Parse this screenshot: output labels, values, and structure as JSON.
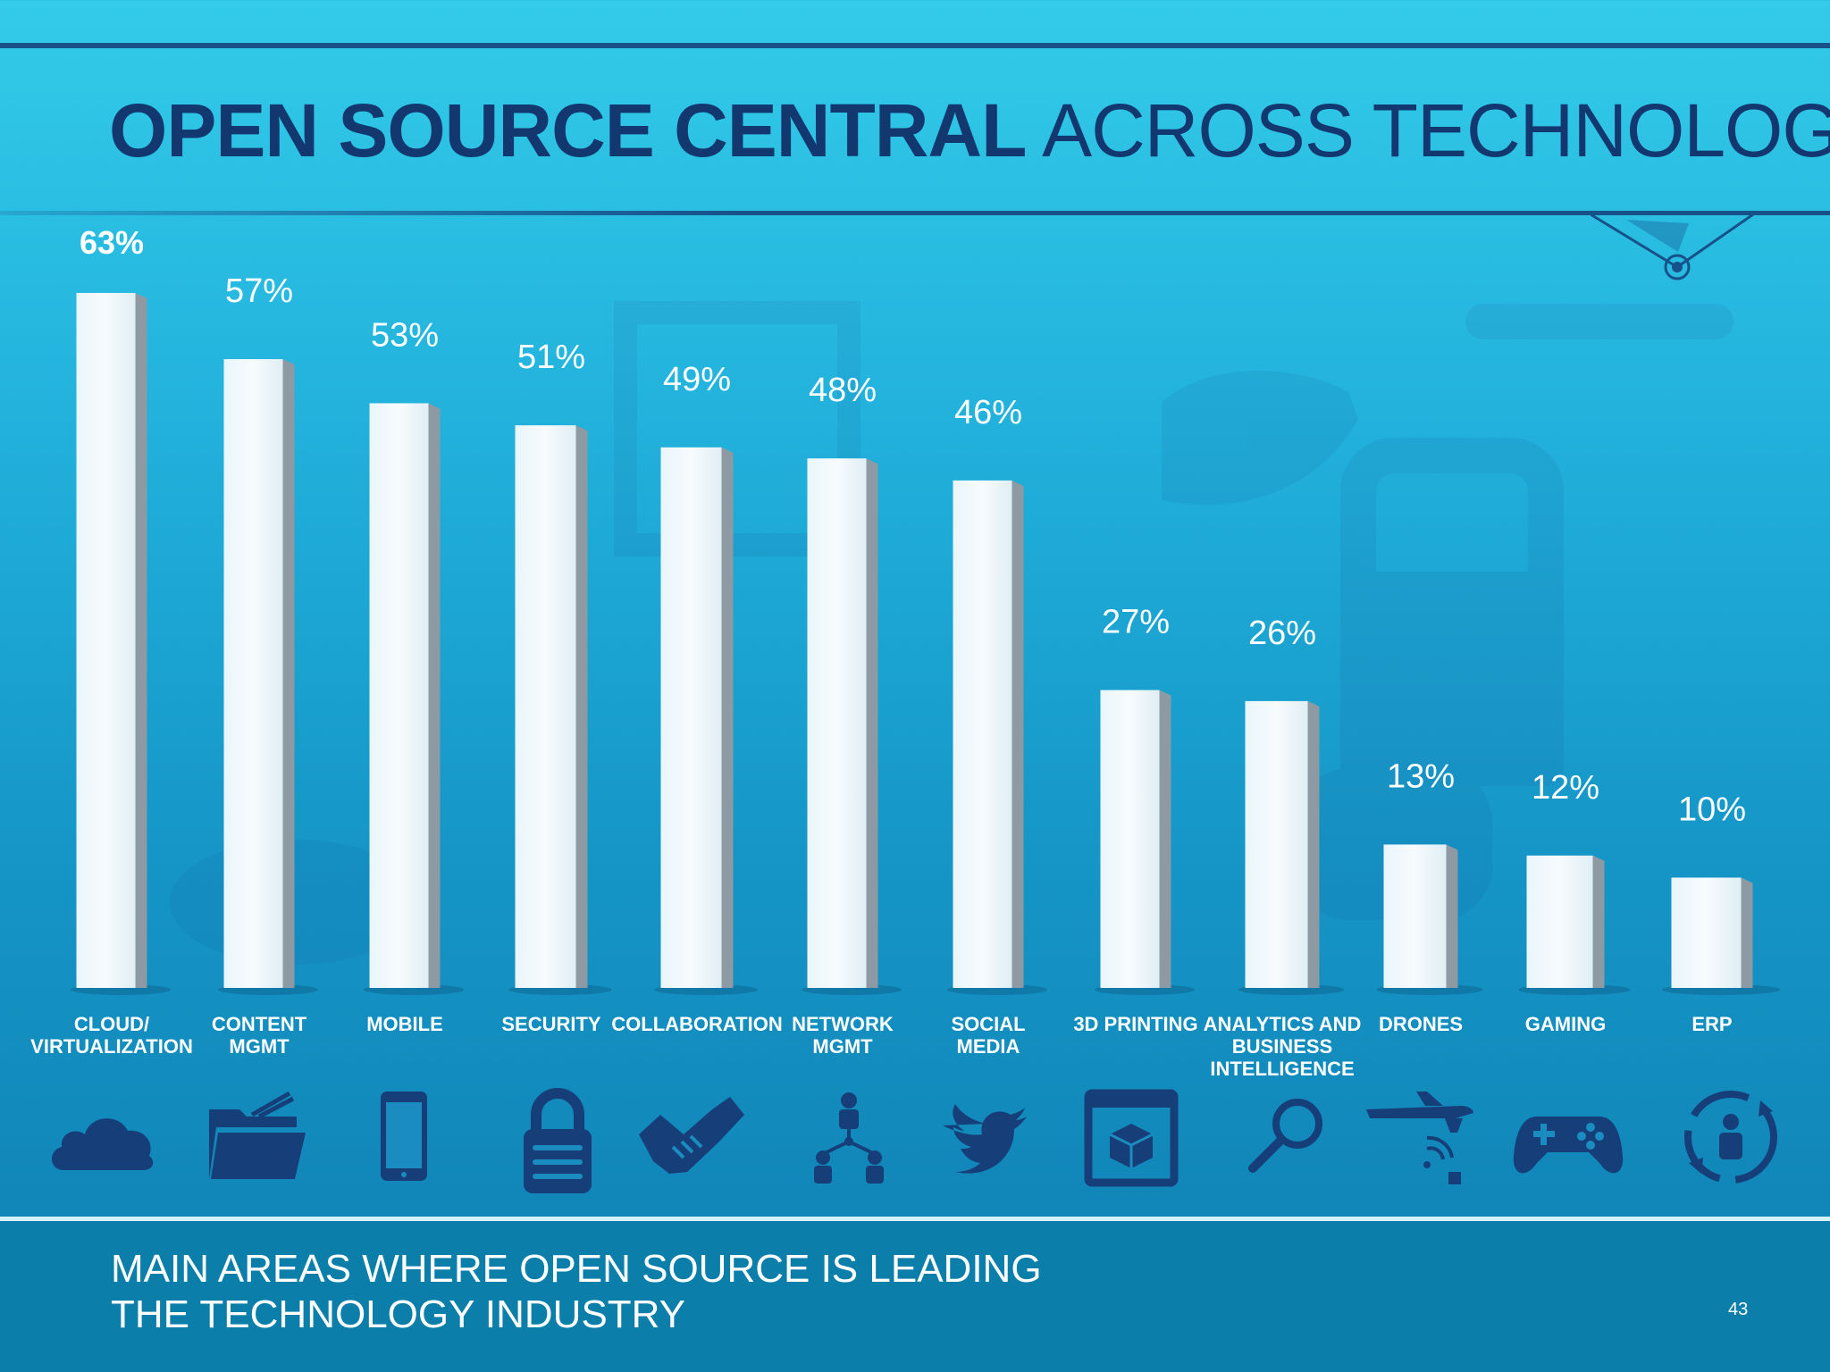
{
  "slide": {
    "title_bold": "OPEN SOURCE CENTRAL",
    "title_light": " ACROSS TECHNOLOGY",
    "footer_line1": "MAIN AREAS WHERE OPEN SOURCE IS LEADING",
    "footer_line2": "THE TECHNOLOGY INDUSTRY",
    "page_number": "43"
  },
  "colors": {
    "title": "#12386f",
    "icon": "#163f79",
    "bar_face": "#edf6fb",
    "bar_side": "#8d9aa4",
    "label_text": "#ffffff"
  },
  "chart_data": {
    "type": "bar",
    "categories": [
      "CLOUD/\nVIRTUALIZATION",
      "CONTENT\nMGMT",
      "MOBILE",
      "SECURITY",
      "COLLABORATION",
      "NETWORK\nMGMT",
      "SOCIAL\nMEDIA",
      "3D PRINTING",
      "ANALYTICS AND\nBUSINESS\nINTELLIGENCE",
      "DRONES",
      "GAMING",
      "ERP"
    ],
    "values": [
      63,
      57,
      53,
      51,
      49,
      48,
      46,
      27,
      26,
      13,
      12,
      10
    ],
    "value_labels": [
      "63%",
      "57%",
      "53%",
      "51%",
      "49%",
      "48%",
      "46%",
      "27%",
      "26%",
      "13%",
      "12%",
      "10%"
    ],
    "title": "",
    "xlabel": "",
    "ylabel": "",
    "ylim": [
      0,
      70
    ],
    "grid": false,
    "legend": "none"
  },
  "icons": [
    "cloud-icon",
    "folder-icon",
    "smartphone-icon",
    "lock-icon",
    "handshake-icon",
    "network-people-icon",
    "twitter-bird-icon",
    "3d-printer-icon",
    "magnifier-icon",
    "drone-icon",
    "gamepad-icon",
    "erp-user-cycle-icon"
  ]
}
